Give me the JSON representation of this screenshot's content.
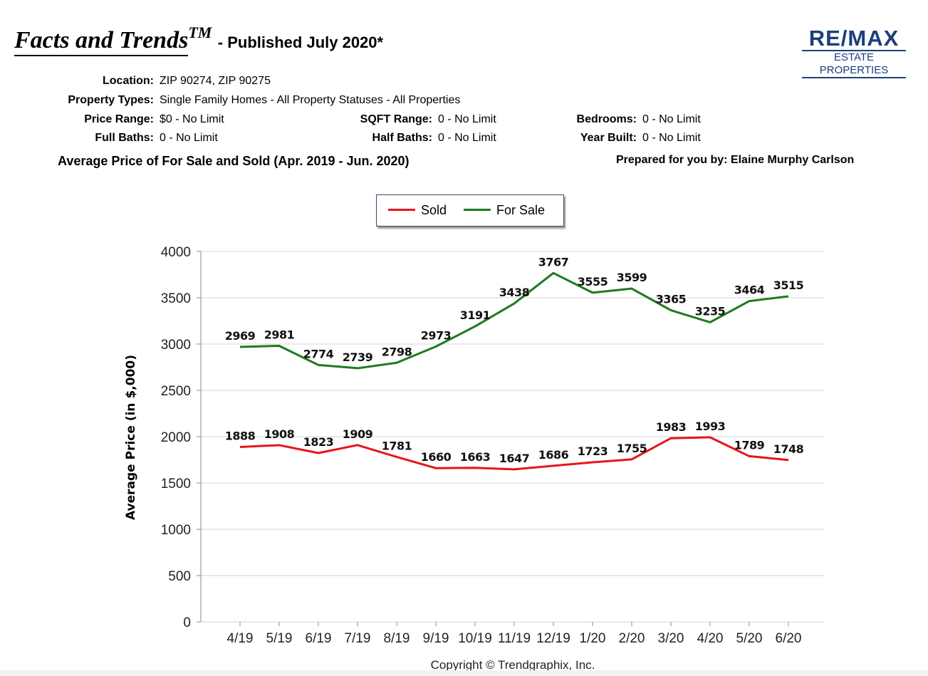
{
  "header": {
    "title": "Facts and Trends",
    "tm": "TM",
    "subtitle": "- Published July 2020*",
    "logo_top": "RE/MAX",
    "logo_bottom": "ESTATE PROPERTIES"
  },
  "criteria": {
    "location_label": "Location:",
    "location_value": "ZIP 90274, ZIP 90275",
    "property_types_label": "Property Types:",
    "property_types_value": "Single Family Homes - All Property Statuses - All Properties",
    "price_range_label": "Price Range:",
    "price_range_value": "$0 - No Limit",
    "sqft_range_label": "SQFT Range:",
    "sqft_range_value": "0 - No Limit",
    "bedrooms_label": "Bedrooms:",
    "bedrooms_value": "0 - No Limit",
    "full_baths_label": "Full Baths:",
    "full_baths_value": "0 - No Limit",
    "half_baths_label": "Half Baths:",
    "half_baths_value": "0 - No Limit",
    "year_built_label": "Year Built:",
    "year_built_value": "0 - No Limit"
  },
  "section_title": "Average Price of For Sale and Sold (Apr. 2019 - Jun. 2020)",
  "prepared_by": "Prepared for you by: Elaine Murphy Carlson",
  "colors": {
    "sold": "#e8141b",
    "for_sale": "#1e7a1e",
    "grid": "#d4d4d4",
    "logo": "#1c3f7a"
  },
  "chart_data": {
    "type": "line",
    "title": "Average Price of For Sale and Sold (Apr. 2019 - Jun. 2020)",
    "categories": [
      "4/19",
      "5/19",
      "6/19",
      "7/19",
      "8/19",
      "9/19",
      "10/19",
      "11/19",
      "12/19",
      "1/20",
      "2/20",
      "3/20",
      "4/20",
      "5/20",
      "6/20"
    ],
    "series": [
      {
        "name": "Sold",
        "color": "#e8141b",
        "values": [
          1888,
          1908,
          1823,
          1909,
          1781,
          1660,
          1663,
          1647,
          1686,
          1723,
          1755,
          1983,
          1993,
          1789,
          1748
        ]
      },
      {
        "name": "For Sale",
        "color": "#1e7a1e",
        "values": [
          2969,
          2981,
          2774,
          2739,
          2798,
          2973,
          3191,
          3438,
          3767,
          3555,
          3599,
          3365,
          3235,
          3464,
          3515
        ]
      }
    ],
    "ylabel": "Average Price (in $,000)",
    "xlabel": "",
    "ylim": [
      0,
      4000
    ],
    "yticks": [
      0,
      500,
      1000,
      1500,
      2000,
      2500,
      3000,
      3500,
      4000
    ],
    "legend_position": "top-center",
    "grid": true,
    "footer": "Copyright © Trendgraphix, Inc."
  }
}
